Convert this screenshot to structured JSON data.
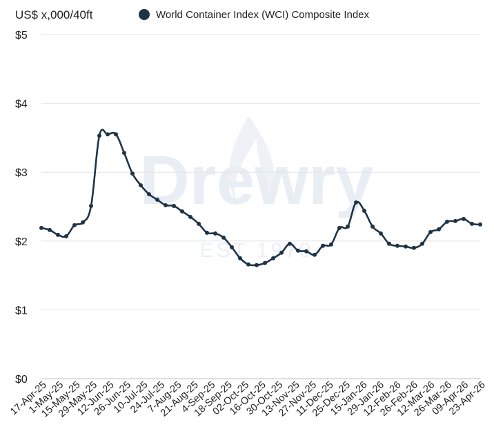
{
  "watermark": {
    "brand": "Drewry",
    "est": "EST 1970"
  },
  "chart_data": {
    "type": "line",
    "ylabel": "US$ x,000/40ft",
    "ylim": [
      0,
      5
    ],
    "yticks": [
      0,
      1,
      2,
      3,
      4,
      5
    ],
    "ytick_labels": [
      "$0",
      "$1",
      "$2",
      "$3",
      "$4",
      "$5"
    ],
    "grid": true,
    "legend": {
      "placement": "top",
      "label": "World Container Index (WCI) Composite Index"
    },
    "x_tick_labels": [
      "17-Apr-25",
      "1-May-25",
      "15-May-25",
      "29-May-25",
      "12-Jun-25",
      "26-Jun-25",
      "10-Jul-25",
      "24-Jul-25",
      "7-Aug-25",
      "21-Aug-25",
      "4-Sep-25",
      "18-Sep-25",
      "02-Oct-25",
      "16-Oct-25",
      "30-Oct-25",
      "13-Nov-25",
      "27-Nov-25",
      "11-Dec-25",
      "25-Dec-25",
      "15-Jan-26",
      "29-Jan-26",
      "12-Feb-26",
      "26-Feb-26",
      "12-Mar-26",
      "26-Mar-26",
      "09-Apr-26",
      "23-Apr-26"
    ],
    "series": [
      {
        "name": "World Container Index (WCI) Composite Index",
        "color": "#1f3347",
        "values": [
          2.19,
          2.16,
          2.09,
          2.07,
          2.23,
          2.27,
          2.51,
          3.53,
          3.55,
          3.55,
          3.28,
          2.98,
          2.81,
          2.68,
          2.6,
          2.52,
          2.51,
          2.43,
          2.35,
          2.25,
          2.12,
          2.11,
          2.05,
          1.91,
          1.75,
          1.66,
          1.65,
          1.68,
          1.75,
          1.83,
          1.96,
          1.86,
          1.85,
          1.8,
          1.93,
          1.95,
          2.19,
          2.21,
          2.56,
          2.44,
          2.21,
          2.11,
          1.96,
          1.93,
          1.92,
          1.9,
          1.96,
          2.13,
          2.17,
          2.28,
          2.29,
          2.32,
          2.25,
          2.24
        ]
      }
    ]
  }
}
